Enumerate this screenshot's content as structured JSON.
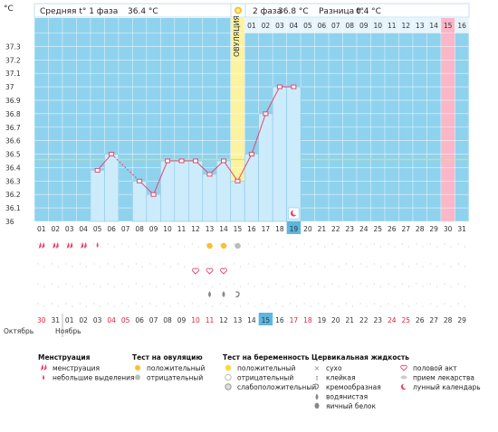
{
  "header": {
    "unit": "°C",
    "phase1_label": "Средняя t° 1 фаза",
    "phase1_value": "36.4 °C",
    "phase2_label": "2 фаза",
    "phase2_value": "36.8 °C",
    "diff_label": "Разница t°",
    "diff_value": "0.4 °C",
    "ovulation_label": "ОВУЛЯЦИЯ"
  },
  "chart_data": {
    "type": "line",
    "ylim": [
      36,
      37.4
    ],
    "y_ticks": [
      "36",
      "36.1",
      "36.2",
      "36.3",
      "36.4",
      "36.5",
      "36.6",
      "36.7",
      "36.8",
      "36.9",
      "37",
      "37.1",
      "37.2",
      "37.3",
      "°C"
    ],
    "coverline": 36.46,
    "cycle_days": [
      "01",
      "02",
      "03",
      "04",
      "05",
      "06",
      "07",
      "08",
      "09",
      "10",
      "11",
      "12",
      "13",
      "14",
      "15",
      "16",
      "17",
      "18",
      "19",
      "20",
      "21",
      "22",
      "23",
      "24",
      "25",
      "26",
      "27",
      "28",
      "29",
      "30",
      "31"
    ],
    "calendar_days": [
      "30",
      "31",
      "01",
      "02",
      "03",
      "04",
      "05",
      "06",
      "07",
      "08",
      "09",
      "10",
      "11",
      "12",
      "13",
      "14",
      "15",
      "16",
      "17",
      "18",
      "19",
      "20",
      "21",
      "22",
      "23",
      "24",
      "25",
      "26",
      "27",
      "28",
      "29"
    ],
    "calendar_red_indices": [
      0,
      5,
      6,
      11,
      12,
      18,
      19,
      25,
      26
    ],
    "months": [
      "Октябрь",
      "Ноябрь"
    ],
    "phase2_day_labels": [
      "01",
      "02",
      "03",
      "04",
      "05",
      "06",
      "07",
      "08",
      "09",
      "10",
      "11",
      "12",
      "13",
      "14",
      "15",
      "16"
    ],
    "ovulation_day_index": 14,
    "current_cycle_day_index": 18,
    "current_calendar_index": 16,
    "phase2_highlight_label_index": 14,
    "temperatures": [
      {
        "day": 5,
        "temp": 36.38
      },
      {
        "day": 6,
        "temp": 36.5
      },
      {
        "day": 8,
        "temp": 36.3
      },
      {
        "day": 9,
        "temp": 36.2
      },
      {
        "day": 10,
        "temp": 36.45
      },
      {
        "day": 11,
        "temp": 36.45
      },
      {
        "day": 12,
        "temp": 36.45
      },
      {
        "day": 13,
        "temp": 36.35
      },
      {
        "day": 14,
        "temp": 36.45
      },
      {
        "day": 15,
        "temp": 36.3
      },
      {
        "day": 16,
        "temp": 36.5
      },
      {
        "day": 17,
        "temp": 36.8
      },
      {
        "day": 18,
        "temp": 37.0
      },
      {
        "day": 19,
        "temp": 37.0
      }
    ],
    "dashed_segment": [
      6,
      8
    ],
    "colors": {
      "plot_bg": "#8fd2ee",
      "bar": "#ccecfb",
      "bar_edge": "#8cc6e6",
      "line": "#e6466e",
      "coverline": "#d7e94e",
      "ovulation": "#fdf2a0",
      "today": "#5cb6e0",
      "highlight_red": "#fbb6c8",
      "grid_white": "#ffffff"
    }
  },
  "symbols": {
    "menstruation_days": [
      1,
      2,
      3,
      4
    ],
    "spotting_days": [
      5
    ],
    "ovulation_positive_days": [
      13,
      14
    ],
    "ovulation_negative_days": [
      15
    ],
    "sex_days": [
      12,
      13,
      14
    ],
    "mucus_watery_days": [
      13,
      14
    ],
    "mucus_creamy_days": [
      15
    ],
    "moon_day": 19
  },
  "legend": {
    "groups": [
      {
        "title": "Менструация",
        "items": [
          {
            "icon": "menstruation-drops-icon",
            "label": "менструация"
          },
          {
            "icon": "spotting-drop-icon",
            "label": "небольшие выделения"
          }
        ]
      },
      {
        "title": "Тест на овуляцию",
        "items": [
          {
            "icon": "ovulation-positive-icon",
            "label": "положительный"
          },
          {
            "icon": "ovulation-negative-icon",
            "label": "отрицательный"
          }
        ]
      },
      {
        "title": "Тест на беременность",
        "items": [
          {
            "icon": "pregnancy-positive-icon",
            "label": "положительный"
          },
          {
            "icon": "pregnancy-negative-icon",
            "label": "отрицательный"
          },
          {
            "icon": "pregnancy-weak-icon",
            "label": "слабоположительный"
          }
        ]
      },
      {
        "title": "Цервикальная жидкость",
        "items": [
          {
            "icon": "dry-icon",
            "label": "сухо"
          },
          {
            "icon": "sticky-icon",
            "label": "клейкая"
          },
          {
            "icon": "creamy-icon",
            "label": "кремообразная"
          },
          {
            "icon": "watery-icon",
            "label": "водянистая"
          },
          {
            "icon": "egg-white-icon",
            "label": "яичный белок"
          }
        ]
      },
      {
        "title": "",
        "items": [
          {
            "icon": "heart-icon",
            "label": "половой акт"
          },
          {
            "icon": "pill-icon",
            "label": "прием лекарства"
          },
          {
            "icon": "moon-icon",
            "label": "лунный календарь"
          }
        ]
      }
    ]
  }
}
